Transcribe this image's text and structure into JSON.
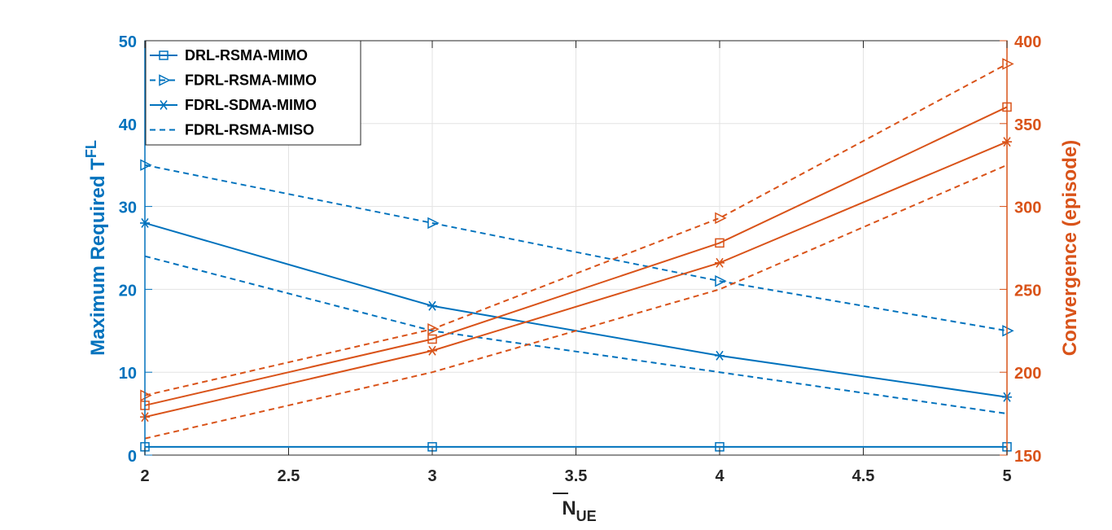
{
  "chart_data": {
    "type": "line",
    "x": [
      2,
      3,
      4,
      5
    ],
    "xlim": [
      2,
      5
    ],
    "x_ticks": [
      "2",
      "2.5",
      "3",
      "3.5",
      "4",
      "4.5",
      "5"
    ],
    "xlabel": "N",
    "xlabel_sub": "UE",
    "ylabel_left": "Maximum Required T",
    "ylabel_left_sup": "FL",
    "ylabel_right": "Convergence (episode)",
    "ylim_left": [
      0,
      50
    ],
    "ylim_right": [
      150,
      400
    ],
    "y_ticks_left": [
      "0",
      "10",
      "20",
      "30",
      "40",
      "50"
    ],
    "y_ticks_right": [
      "150",
      "200",
      "250",
      "300",
      "350",
      "400"
    ],
    "grid": true,
    "legend_position": "top-left",
    "colors": {
      "left": "#0072BD",
      "right": "#D95319"
    },
    "legend": [
      {
        "label": "DRL-RSMA-MIMO",
        "style": "solid",
        "marker": "square"
      },
      {
        "label": "FDRL-RSMA-MIMO",
        "style": "dashed",
        "marker": "triangle-right"
      },
      {
        "label": "FDRL-SDMA-MIMO",
        "style": "solid",
        "marker": "asterisk"
      },
      {
        "label": "FDRL-RSMA-MISO",
        "style": "dashed",
        "marker": "none"
      }
    ],
    "series": [
      {
        "name": "DRL-RSMA-MIMO",
        "axis": "left",
        "style": "solid",
        "marker": "square",
        "values": [
          1,
          1,
          1,
          1
        ]
      },
      {
        "name": "FDRL-RSMA-MIMO",
        "axis": "left",
        "style": "dashed",
        "marker": "triangle-right",
        "values": [
          35,
          28,
          21,
          15
        ]
      },
      {
        "name": "FDRL-SDMA-MIMO",
        "axis": "left",
        "style": "solid",
        "marker": "asterisk",
        "values": [
          28,
          18,
          12,
          7
        ]
      },
      {
        "name": "FDRL-RSMA-MISO",
        "axis": "left",
        "style": "dashed",
        "marker": "none",
        "values": [
          24,
          15,
          10,
          5
        ]
      },
      {
        "name": "DRL-RSMA-MIMO",
        "axis": "right",
        "style": "solid",
        "marker": "square",
        "values": [
          180,
          220,
          278,
          360
        ]
      },
      {
        "name": "FDRL-RSMA-MIMO",
        "axis": "right",
        "style": "dashed",
        "marker": "triangle-right",
        "values": [
          186,
          226,
          293,
          386
        ]
      },
      {
        "name": "FDRL-SDMA-MIMO",
        "axis": "right",
        "style": "solid",
        "marker": "asterisk",
        "values": [
          173,
          213,
          266,
          339
        ]
      },
      {
        "name": "FDRL-RSMA-MISO",
        "axis": "right",
        "style": "dashed",
        "marker": "none",
        "values": [
          160,
          200,
          250,
          325
        ]
      }
    ]
  }
}
